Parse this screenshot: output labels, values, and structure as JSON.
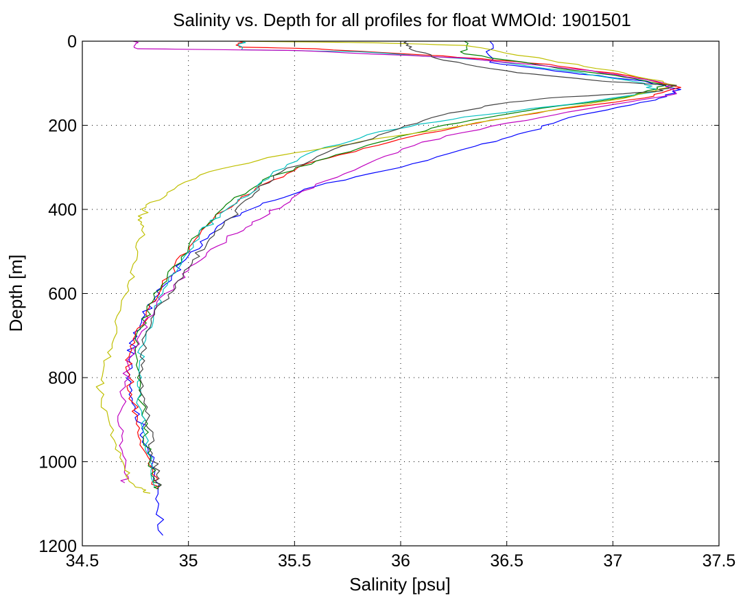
{
  "chart_data": {
    "type": "line",
    "title": "Salinity vs. Depth for all profiles for float WMOId: 1901501",
    "xlabel": "Salinity [psu]",
    "ylabel": "Depth [m]",
    "xlim": [
      34.5,
      37.5
    ],
    "ylim": [
      0,
      1200
    ],
    "y_reversed": true,
    "grid": true,
    "grid_style": "dotted",
    "x_ticks": [
      "34.5",
      "35",
      "35.5",
      "36",
      "36.5",
      "37",
      "37.5"
    ],
    "y_ticks": [
      "0",
      "200",
      "400",
      "600",
      "800",
      "1000",
      "1200"
    ],
    "series": [
      {
        "color": "#0000ff",
        "points": [
          [
            36.42,
            0
          ],
          [
            36.42,
            50
          ],
          [
            36.8,
            75
          ],
          [
            37.15,
            95
          ],
          [
            37.32,
            115
          ],
          [
            37.2,
            140
          ],
          [
            36.85,
            175
          ],
          [
            36.6,
            215
          ],
          [
            36.35,
            250
          ],
          [
            36.0,
            300
          ],
          [
            35.6,
            345
          ],
          [
            35.35,
            385
          ],
          [
            35.2,
            420
          ],
          [
            35.1,
            460
          ],
          [
            35.0,
            510
          ],
          [
            34.92,
            560
          ],
          [
            34.84,
            610
          ],
          [
            34.78,
            660
          ],
          [
            34.74,
            710
          ],
          [
            34.72,
            760
          ],
          [
            34.73,
            810
          ],
          [
            34.75,
            870
          ],
          [
            34.78,
            920
          ],
          [
            34.81,
            970
          ],
          [
            34.84,
            1030
          ],
          [
            34.86,
            1100
          ],
          [
            34.88,
            1175
          ]
        ]
      },
      {
        "color": "#ff0000",
        "points": [
          [
            35.24,
            0
          ],
          [
            35.24,
            14
          ],
          [
            35.6,
            18
          ],
          [
            36.2,
            35
          ],
          [
            36.7,
            55
          ],
          [
            37.05,
            80
          ],
          [
            37.32,
            110
          ],
          [
            37.15,
            135
          ],
          [
            36.7,
            165
          ],
          [
            36.3,
            200
          ],
          [
            35.95,
            240
          ],
          [
            35.6,
            285
          ],
          [
            35.4,
            330
          ],
          [
            35.25,
            370
          ],
          [
            35.12,
            420
          ],
          [
            35.02,
            480
          ],
          [
            34.93,
            540
          ],
          [
            34.86,
            600
          ],
          [
            34.8,
            650
          ],
          [
            34.75,
            700
          ],
          [
            34.72,
            750
          ],
          [
            34.72,
            800
          ],
          [
            34.74,
            860
          ],
          [
            34.77,
            920
          ],
          [
            34.8,
            980
          ],
          [
            34.83,
            1030
          ],
          [
            34.85,
            1065
          ]
        ]
      },
      {
        "color": "#008000",
        "points": [
          [
            36.3,
            0
          ],
          [
            36.3,
            30
          ],
          [
            36.7,
            60
          ],
          [
            37.05,
            85
          ],
          [
            37.25,
            105
          ],
          [
            37.1,
            130
          ],
          [
            36.6,
            165
          ],
          [
            36.2,
            200
          ],
          [
            35.9,
            240
          ],
          [
            35.6,
            285
          ],
          [
            35.35,
            330
          ],
          [
            35.2,
            380
          ],
          [
            35.1,
            430
          ],
          [
            35.0,
            490
          ],
          [
            34.9,
            560
          ],
          [
            34.83,
            620
          ],
          [
            34.78,
            680
          ],
          [
            34.75,
            740
          ],
          [
            34.76,
            800
          ],
          [
            34.78,
            860
          ],
          [
            34.79,
            920
          ],
          [
            34.81,
            980
          ],
          [
            34.84,
            1040
          ],
          [
            34.86,
            1065
          ]
        ]
      },
      {
        "color": "#00bfbf",
        "points": [
          [
            35.25,
            0
          ],
          [
            35.25,
            20
          ],
          [
            35.8,
            25
          ],
          [
            36.4,
            45
          ],
          [
            36.85,
            75
          ],
          [
            37.15,
            100
          ],
          [
            37.2,
            120
          ],
          [
            36.8,
            150
          ],
          [
            36.3,
            180
          ],
          [
            35.9,
            215
          ],
          [
            35.6,
            260
          ],
          [
            35.4,
            310
          ],
          [
            35.3,
            360
          ],
          [
            35.15,
            410
          ],
          [
            35.05,
            460
          ],
          [
            34.97,
            520
          ],
          [
            34.9,
            580
          ],
          [
            34.84,
            640
          ],
          [
            34.8,
            700
          ],
          [
            34.77,
            760
          ],
          [
            34.76,
            820
          ],
          [
            34.78,
            880
          ],
          [
            34.8,
            940
          ],
          [
            34.82,
            1000
          ],
          [
            34.84,
            1060
          ]
        ]
      },
      {
        "color": "#bf00bf",
        "points": [
          [
            34.74,
            0
          ],
          [
            34.76,
            18
          ],
          [
            35.5,
            22
          ],
          [
            36.3,
            40
          ],
          [
            36.9,
            70
          ],
          [
            37.25,
            100
          ],
          [
            37.3,
            125
          ],
          [
            36.95,
            155
          ],
          [
            36.5,
            195
          ],
          [
            36.1,
            240
          ],
          [
            35.85,
            290
          ],
          [
            35.6,
            340
          ],
          [
            35.45,
            390
          ],
          [
            35.3,
            430
          ],
          [
            35.18,
            470
          ],
          [
            35.06,
            520
          ],
          [
            34.95,
            570
          ],
          [
            34.85,
            630
          ],
          [
            34.78,
            690
          ],
          [
            34.73,
            750
          ],
          [
            34.7,
            810
          ],
          [
            34.68,
            880
          ],
          [
            34.69,
            950
          ],
          [
            34.7,
            1020
          ],
          [
            34.7,
            1050
          ]
        ]
      },
      {
        "color": "#bfbf00",
        "points": [
          [
            35.25,
            0
          ],
          [
            35.9,
            4
          ],
          [
            36.3,
            10
          ],
          [
            36.7,
            45
          ],
          [
            37.05,
            75
          ],
          [
            37.3,
            105
          ],
          [
            37.1,
            130
          ],
          [
            36.7,
            165
          ],
          [
            36.3,
            200
          ],
          [
            35.8,
            240
          ],
          [
            35.45,
            270
          ],
          [
            35.1,
            310
          ],
          [
            34.9,
            360
          ],
          [
            34.8,
            395
          ],
          [
            34.78,
            420
          ],
          [
            34.78,
            450
          ],
          [
            34.76,
            510
          ],
          [
            34.72,
            570
          ],
          [
            34.68,
            640
          ],
          [
            34.64,
            720
          ],
          [
            34.6,
            780
          ],
          [
            34.58,
            830
          ],
          [
            34.62,
            890
          ],
          [
            34.66,
            960
          ],
          [
            34.7,
            1020
          ],
          [
            34.75,
            1060
          ],
          [
            34.82,
            1075
          ]
        ]
      },
      {
        "color": "#404040",
        "points": [
          [
            36.03,
            0
          ],
          [
            36.05,
            20
          ],
          [
            36.2,
            45
          ],
          [
            36.55,
            75
          ],
          [
            36.95,
            95
          ],
          [
            37.3,
            105
          ],
          [
            37.2,
            120
          ],
          [
            36.7,
            135
          ],
          [
            36.45,
            150
          ],
          [
            36.2,
            175
          ],
          [
            35.95,
            215
          ],
          [
            35.65,
            265
          ],
          [
            35.4,
            320
          ],
          [
            35.3,
            370
          ],
          [
            35.2,
            420
          ],
          [
            35.1,
            470
          ],
          [
            35.02,
            520
          ],
          [
            34.95,
            570
          ],
          [
            34.88,
            620
          ],
          [
            34.82,
            680
          ],
          [
            34.78,
            740
          ],
          [
            34.77,
            800
          ],
          [
            34.79,
            860
          ],
          [
            34.81,
            920
          ],
          [
            34.83,
            980
          ],
          [
            34.85,
            1030
          ],
          [
            34.86,
            1060
          ]
        ]
      }
    ]
  }
}
